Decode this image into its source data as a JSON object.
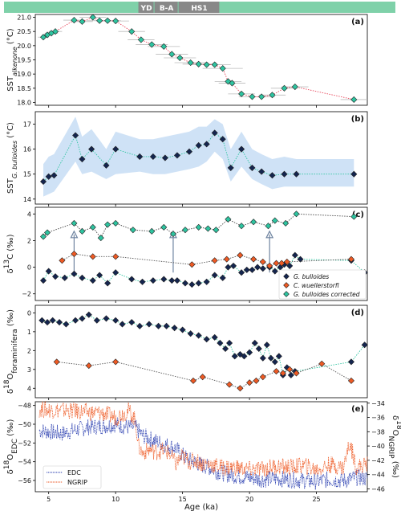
{
  "chart_data": [
    {
      "type": "scatter",
      "panel_label": "(a)",
      "ylabel_main": "SST",
      "ylabel_sub": "alkenone",
      "ylabel_unit": " (°C)",
      "ylim": [
        17.9,
        21.1
      ],
      "yticks": [
        "18.0",
        "18.5",
        "19.0",
        "19.5",
        "20.0",
        "20.5",
        "21.0"
      ],
      "xlim": [
        4,
        28.8
      ],
      "series": [
        {
          "color": "#2ec4a0",
          "marker": "diamond",
          "line": "#e8455a",
          "x": [
            4.6,
            4.9,
            5.2,
            5.5,
            6.9,
            7.5,
            8.3,
            8.8,
            9.4,
            10.0,
            11.2,
            11.9,
            12.7,
            13.6,
            14.2,
            14.8,
            15.6,
            16.2,
            16.8,
            17.4,
            18.0,
            18.4,
            18.7,
            19.4,
            20.2,
            20.9,
            21.7,
            22.6,
            23.4,
            27.8
          ],
          "y": [
            20.3,
            20.38,
            20.44,
            20.5,
            20.9,
            20.85,
            21.0,
            20.88,
            20.88,
            20.87,
            20.5,
            20.21,
            20.04,
            19.97,
            19.7,
            19.57,
            19.4,
            19.35,
            19.33,
            19.33,
            19.2,
            18.74,
            18.68,
            18.3,
            18.2,
            18.2,
            18.26,
            18.5,
            18.55,
            18.1
          ],
          "xerr": [
            0.4,
            0.4,
            0.5,
            0.5,
            0.8,
            0.8,
            1.0,
            1.0,
            1.0,
            1.0,
            1.0,
            1.0,
            1.2,
            1.2,
            1.2,
            1.2,
            1.2,
            1.2,
            1.2,
            1.2,
            1.5,
            1.0,
            1.0,
            1.0,
            1.0,
            1.0,
            1.0,
            1.0,
            1.0,
            1.0
          ]
        }
      ]
    },
    {
      "type": "scatter",
      "panel_label": "(b)",
      "ylabel_main": "SST",
      "ylabel_sub": "G. bulloides",
      "ylabel_unit": " (°C)",
      "ylim": [
        13.8,
        17.5
      ],
      "yticks": [
        "14",
        "15",
        "16",
        "17"
      ],
      "xlim": [
        4,
        28.8
      ],
      "series": [
        {
          "color": "#14254f",
          "marker": "diamond",
          "line": "#2ec4a0",
          "band": "#cfe2f6",
          "x": [
            4.6,
            5.0,
            5.4,
            7.0,
            7.5,
            8.2,
            9.3,
            10.0,
            11.8,
            12.8,
            13.7,
            14.6,
            15.5,
            16.2,
            16.8,
            17.4,
            18.0,
            18.6,
            19.4,
            20.2,
            20.9,
            21.7,
            22.6,
            23.5,
            27.8
          ],
          "y": [
            14.7,
            14.9,
            14.95,
            16.55,
            15.6,
            16.0,
            15.35,
            16.0,
            15.7,
            15.7,
            15.65,
            15.75,
            15.9,
            16.15,
            16.2,
            16.65,
            16.4,
            15.25,
            16.0,
            15.25,
            15.1,
            14.95,
            15.0,
            15.0,
            15.0
          ],
          "band_lo": [
            14.1,
            14.2,
            14.3,
            15.5,
            15.0,
            15.1,
            14.8,
            15.0,
            15.1,
            15.0,
            15.0,
            15.1,
            15.2,
            15.3,
            15.5,
            15.9,
            15.6,
            14.7,
            15.3,
            14.8,
            14.6,
            14.4,
            14.5,
            14.5,
            14.5
          ],
          "band_hi": [
            15.4,
            15.7,
            15.8,
            17.3,
            16.5,
            16.8,
            16.0,
            16.7,
            16.4,
            16.4,
            16.5,
            16.6,
            16.7,
            16.9,
            16.9,
            17.2,
            17.0,
            16.0,
            16.7,
            16.0,
            15.8,
            15.6,
            15.7,
            15.6,
            15.6
          ]
        }
      ]
    },
    {
      "type": "scatter",
      "panel_label": "(c)",
      "ylabel_html": "δ<tspan baseline-shift='super' font-size='9'>13</tspan>C (‰)",
      "ylim": [
        -2.5,
        4.5
      ],
      "yticks": [
        "−2",
        "0",
        "2",
        "4"
      ],
      "ytick_values": [
        -2,
        0,
        2,
        4
      ],
      "xlim": [
        4,
        28.8
      ],
      "legend": [
        "G. bulloides",
        "C. wuellerstorfi",
        "G. bulloides corrected"
      ],
      "arrows_x": [
        6.9,
        14.3,
        21.5
      ],
      "series": [
        {
          "name": "G. bulloides",
          "color": "#14254f",
          "line": "#2ec4a0",
          "x": [
            4.6,
            5.0,
            5.5,
            6.2,
            6.9,
            7.5,
            8.3,
            8.8,
            9.4,
            10.0,
            11.2,
            12.0,
            12.8,
            13.6,
            14.2,
            14.6,
            15.2,
            15.7,
            16.2,
            16.8,
            17.4,
            18.0,
            18.4,
            18.8,
            19.4,
            19.8,
            20.2,
            20.6,
            21.0,
            21.5,
            21.9,
            22.3,
            22.6,
            23.0,
            23.4,
            23.8,
            27.6,
            28.6
          ],
          "y": [
            -1.0,
            -0.3,
            -0.7,
            -0.8,
            -0.5,
            -0.8,
            -1.0,
            -0.6,
            -1.2,
            -0.4,
            -0.9,
            -1.1,
            -1.0,
            -0.9,
            -1.0,
            -1.0,
            -1.2,
            -1.3,
            -1.2,
            -1.1,
            -0.6,
            -0.8,
            0.0,
            0.1,
            -0.4,
            -0.2,
            -0.2,
            0.0,
            -0.1,
            0.0,
            -0.3,
            0.0,
            0.2,
            0.1,
            0.9,
            0.6,
            0.5,
            -0.4
          ]
        },
        {
          "name": "C. wuellerstorfi",
          "color": "#ee5a24",
          "line": "#555555",
          "x": [
            6.0,
            6.9,
            8.3,
            10.0,
            15.7,
            17.4,
            18.3,
            19.3,
            20.3,
            21.0,
            21.5,
            22.0,
            22.4,
            22.8,
            27.6
          ],
          "y": [
            0.5,
            1.0,
            0.8,
            0.8,
            0.2,
            0.5,
            0.6,
            0.9,
            0.6,
            0.4,
            0.1,
            0.3,
            0.3,
            0.4,
            0.6
          ]
        },
        {
          "name": "G. bulloides corrected",
          "color": "#2ec4a0",
          "line": "#444444",
          "x": [
            4.6,
            4.9,
            6.9,
            7.5,
            8.3,
            8.9,
            9.4,
            10.0,
            11.3,
            12.7,
            13.6,
            14.3,
            15.2,
            16.2,
            16.9,
            17.5,
            18.4,
            19.4,
            20.3,
            21.4,
            21.9,
            22.7,
            23.5,
            27.8
          ],
          "y": [
            2.3,
            2.6,
            3.3,
            2.7,
            3.0,
            2.2,
            3.2,
            3.3,
            2.8,
            2.7,
            3.0,
            2.5,
            2.8,
            3.0,
            2.9,
            2.8,
            3.6,
            3.1,
            3.4,
            3.1,
            3.5,
            3.3,
            4.0,
            3.8
          ]
        }
      ]
    },
    {
      "type": "scatter",
      "panel_label": "(d)",
      "ylabel_html": "δ<tspan baseline-shift='super' font-size='9'>18</tspan>O<tspan baseline-shift='sub' font-size='9'>foraminifera</tspan> (‰)",
      "ylim": [
        4.5,
        -0.4
      ],
      "yticks": [
        "0",
        "1",
        "2",
        "3",
        "4"
      ],
      "ytick_values": [
        0,
        1,
        2,
        3,
        4
      ],
      "xlim": [
        4,
        28.8
      ],
      "series": [
        {
          "color": "#14254f",
          "line": "#2ec4a0",
          "x": [
            4.5,
            4.9,
            5.3,
            5.8,
            6.3,
            7.0,
            7.5,
            8.0,
            8.6,
            9.3,
            10.0,
            10.5,
            11.2,
            11.8,
            12.5,
            13.2,
            13.8,
            14.4,
            15.0,
            15.6,
            16.2,
            16.8,
            17.4,
            17.8,
            18.2,
            18.5,
            18.9,
            19.3,
            19.6,
            20.0,
            20.4,
            20.7,
            21.0,
            21.3,
            21.6,
            21.9,
            22.2,
            22.5,
            22.8,
            23.1,
            23.4,
            27.6,
            28.6
          ],
          "y": [
            0.4,
            0.5,
            0.4,
            0.5,
            0.6,
            0.4,
            0.3,
            0.1,
            0.4,
            0.3,
            0.4,
            0.6,
            0.5,
            0.7,
            0.6,
            0.7,
            0.7,
            0.8,
            0.9,
            1.1,
            1.2,
            1.4,
            1.3,
            1.6,
            1.9,
            1.6,
            2.3,
            2.2,
            2.3,
            2.1,
            1.6,
            1.9,
            2.4,
            1.7,
            2.4,
            2.6,
            2.3,
            3.3,
            2.9,
            3.3,
            3.1,
            2.6,
            1.7
          ]
        },
        {
          "color": "#ee5a24",
          "line": "#555555",
          "x": [
            5.6,
            8.0,
            10.0,
            15.8,
            16.5,
            18.5,
            19.3,
            20.0,
            20.5,
            21.0,
            22.0,
            22.5,
            23.0,
            23.5,
            25.4,
            27.6
          ],
          "y": [
            2.6,
            2.8,
            2.6,
            3.6,
            3.4,
            3.8,
            4.0,
            3.7,
            3.6,
            3.4,
            3.1,
            3.2,
            3.0,
            3.2,
            2.7,
            3.6
          ]
        }
      ]
    },
    {
      "type": "line",
      "panel_label": "(e)",
      "ylabel_html": "δ<tspan baseline-shift='super' font-size='9'>18</tspan>O<tspan baseline-shift='sub' font-size='9'>EDC</tspan> (‰)",
      "ylabel_right_html": "δ<tspan baseline-shift='super' font-size='9'>18</tspan>O<tspan baseline-shift='sub' font-size='9'>NGRIP</tspan> (‰)",
      "ylim": [
        -57.2,
        -47.6
      ],
      "yticks": [
        "−48",
        "−50",
        "−52",
        "−54",
        "−56"
      ],
      "ytick_values": [
        -48,
        -50,
        -52,
        -54,
        -56
      ],
      "y2lim": [
        -46.4,
        -33.8
      ],
      "y2ticks": [
        "−34",
        "−36",
        "−38",
        "−40",
        "−42",
        "−44",
        "−46"
      ],
      "y2tick_values": [
        -34,
        -36,
        -38,
        -40,
        -42,
        -44,
        -46
      ],
      "xlim": [
        4,
        28.8
      ],
      "xticks": [
        "5",
        "10",
        "15",
        "20",
        "25"
      ],
      "xtick_values": [
        5,
        10,
        15,
        20,
        25
      ],
      "xlabel": "Age (ka)",
      "legend": [
        "EDC",
        "NGRIP"
      ],
      "series": [
        {
          "name": "EDC",
          "color": "#2b3fb0",
          "axis": "left",
          "x": [
            4,
            5,
            6,
            7,
            8,
            9,
            10,
            10.5,
            11,
            11.5,
            12,
            12.5,
            13,
            13.5,
            14,
            14.5,
            15,
            15.5,
            16,
            16.5,
            17,
            17.5,
            18,
            18.5,
            19,
            20,
            21,
            22,
            23,
            24,
            25,
            26,
            27,
            28,
            28.8
          ],
          "y": [
            -50.6,
            -50.8,
            -51.0,
            -50.6,
            -50.3,
            -50.2,
            -50.0,
            -50.2,
            -50.3,
            -50.4,
            -51.2,
            -51.5,
            -51.8,
            -52.1,
            -52.3,
            -52.6,
            -53.3,
            -53.8,
            -54.1,
            -54.4,
            -54.6,
            -55.0,
            -55.2,
            -55.4,
            -55.5,
            -55.7,
            -55.9,
            -55.8,
            -55.9,
            -56.0,
            -56.1,
            -55.9,
            -56.0,
            -55.7,
            -55.8
          ],
          "amp": 0.9
        },
        {
          "name": "NGRIP",
          "color": "#ee5a24",
          "axis": "right",
          "x": [
            4,
            5,
            6,
            7,
            8,
            9,
            10,
            11,
            11.5,
            11.7,
            12,
            12.5,
            13,
            13.5,
            14,
            14.5,
            15,
            15.5,
            16,
            16.5,
            17,
            18,
            19,
            20,
            21,
            22,
            23,
            24,
            25,
            26,
            27,
            27.5,
            28,
            28.8
          ],
          "y": [
            -34.8,
            -34.9,
            -35.0,
            -35.1,
            -35.3,
            -35.4,
            -36.0,
            -35.0,
            -36.5,
            -40.0,
            -41.0,
            -40.5,
            -40.8,
            -40.6,
            -41.0,
            -42.5,
            -41.5,
            -42.2,
            -42.0,
            -42.5,
            -42.5,
            -43.0,
            -43.0,
            -43.3,
            -43.2,
            -42.8,
            -43.0,
            -42.7,
            -43.3,
            -42.6,
            -43.0,
            -39.5,
            -43.0,
            -42.5
          ],
          "amp": 1.2
        }
      ]
    }
  ],
  "timeline": {
    "bar_color": "#7fd1a9",
    "label_bg": "#888888",
    "labels": [
      {
        "text": "YD",
        "from": 11.7,
        "to": 12.9
      },
      {
        "text": "B-A",
        "from": 12.9,
        "to": 14.7
      },
      {
        "text": "HS1",
        "from": 14.7,
        "to": 17.8
      }
    ]
  }
}
